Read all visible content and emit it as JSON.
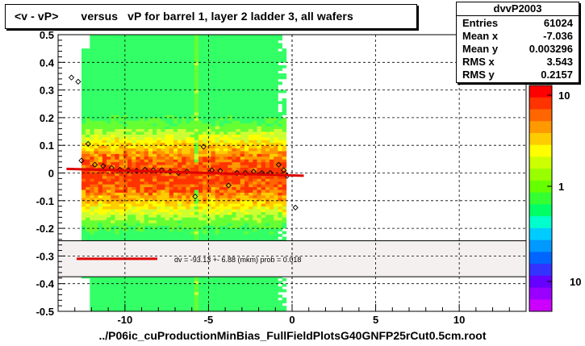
{
  "title": "<v - vP>       versus   vP for barrel 1, layer 2 ladder 3, all wafers",
  "stats": {
    "name": "dvvP2003",
    "rows": [
      {
        "label": "Entries",
        "value": "61024"
      },
      {
        "label": "Mean x",
        "value": "-7.036"
      },
      {
        "label": "Mean y",
        "value": "0.003296"
      },
      {
        "label": "RMS x",
        "value": "3.543"
      },
      {
        "label": "RMS y",
        "value": "0.2157"
      }
    ]
  },
  "fit_legend": "dv =  -93.13 +-  6.88 (mkm) prob = 0.018",
  "footer": "../P06ic_cuProductionMinBias_FullFieldPlotsG40GNFP25rCut0.5cm.root",
  "colors": {
    "fit_line": "#dd0000",
    "legend_bg": "#f5f0f0"
  },
  "chart_data": {
    "type": "heatmap",
    "title": "<v - vP>       versus   vP for barrel 1, layer 2 ladder 3, all wafers",
    "xlabel": "",
    "ylabel": "",
    "xlim": [
      -14,
      14
    ],
    "ylim": [
      -0.5,
      0.5
    ],
    "x_ticks": [
      -10,
      -5,
      0,
      5,
      10
    ],
    "y_ticks": [
      -0.5,
      -0.4,
      -0.3,
      -0.2,
      -0.1,
      0,
      0.1,
      0.2,
      0.3,
      0.4,
      0.5
    ],
    "grid": true,
    "z_scale": "log",
    "z_ticks": [
      "10",
      "1",
      "10"
    ],
    "profile_points": [
      {
        "x": -13.2,
        "y": 0.345
      },
      {
        "x": -12.8,
        "y": 0.33
      },
      {
        "x": -12.6,
        "y": 0.045
      },
      {
        "x": -12.2,
        "y": 0.105
      },
      {
        "x": -11.8,
        "y": 0.03
      },
      {
        "x": -11.3,
        "y": 0.025
      },
      {
        "x": -10.8,
        "y": 0.018
      },
      {
        "x": -10.3,
        "y": 0.012
      },
      {
        "x": -9.8,
        "y": 0.01
      },
      {
        "x": -9.3,
        "y": 0.008
      },
      {
        "x": -8.8,
        "y": 0.012
      },
      {
        "x": -8.3,
        "y": 0.01
      },
      {
        "x": -7.8,
        "y": 0.01
      },
      {
        "x": -7.3,
        "y": 0.005
      },
      {
        "x": -6.8,
        "y": 0.0
      },
      {
        "x": -6.3,
        "y": 0.005
      },
      {
        "x": -5.8,
        "y": -0.085
      },
      {
        "x": -5.3,
        "y": 0.095
      },
      {
        "x": -4.8,
        "y": 0.01
      },
      {
        "x": -4.3,
        "y": 0.008
      },
      {
        "x": -3.8,
        "y": -0.045
      },
      {
        "x": -3.3,
        "y": 0.0
      },
      {
        "x": -2.8,
        "y": 0.0
      },
      {
        "x": -2.3,
        "y": 0.005
      },
      {
        "x": -1.8,
        "y": 0.0
      },
      {
        "x": -1.3,
        "y": 0.0
      },
      {
        "x": -0.8,
        "y": 0.03
      },
      {
        "x": -0.5,
        "y": 0.01
      },
      {
        "x": -0.3,
        "y": -0.01
      },
      {
        "x": 0.2,
        "y": -0.125
      }
    ],
    "fit_line": {
      "x": [
        -13.5,
        0.7
      ],
      "y": [
        0.015,
        -0.01
      ]
    }
  }
}
